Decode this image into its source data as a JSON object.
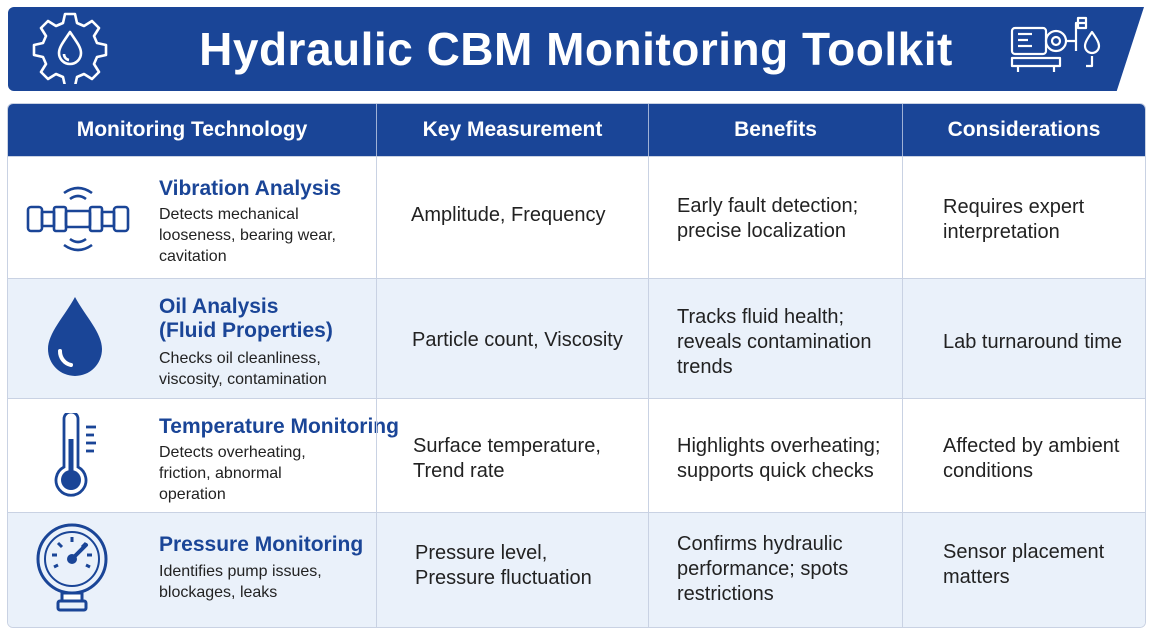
{
  "title": "Hydraulic CBM Monitoring Toolkit",
  "icons": {
    "left": "gear-droplet-icon",
    "right": "hydraulic-pump-icon"
  },
  "colors": {
    "brand_blue": "#1a4597",
    "alt_row": "#eaf1fa",
    "border": "#c9d2e3"
  },
  "columns": [
    "Monitoring Technology",
    "Key Measurement",
    "Benefits",
    "Considerations"
  ],
  "rows": [
    {
      "icon": "vibration-pipe-icon",
      "title": "Vibration Analysis",
      "description": "Detects mechanical\nlooseness, bearing wear,\ncavitation",
      "measurement": "Amplitude, Frequency",
      "benefits": "Early fault detection;\nprecise localization",
      "considerations": "Requires expert\ninterpretation"
    },
    {
      "icon": "oil-drop-icon",
      "title": "Oil Analysis\n(Fluid Properties)",
      "description": "Checks oil cleanliness,\nviscosity, contamination",
      "measurement": "Particle count, Viscosity",
      "benefits": "Tracks fluid health;\nreveals contamination\ntrends",
      "considerations": "Lab turnaround time"
    },
    {
      "icon": "thermometer-icon",
      "title": "Temperature Monitoring",
      "description": "Detects overheating,\nfriction, abnormal\noperation",
      "measurement": "Surface temperature,\nTrend rate",
      "benefits": "Highlights overheating;\nsupports quick checks",
      "considerations": "Affected by ambient\nconditions"
    },
    {
      "icon": "pressure-gauge-icon",
      "title": "Pressure Monitoring",
      "description": "Identifies pump issues,\nblockages, leaks",
      "measurement": "Pressure level,\nPressure fluctuation",
      "benefits": "Confirms hydraulic\nperformance; spots\nrestrictions",
      "considerations": "Sensor placement\nmatters"
    }
  ]
}
